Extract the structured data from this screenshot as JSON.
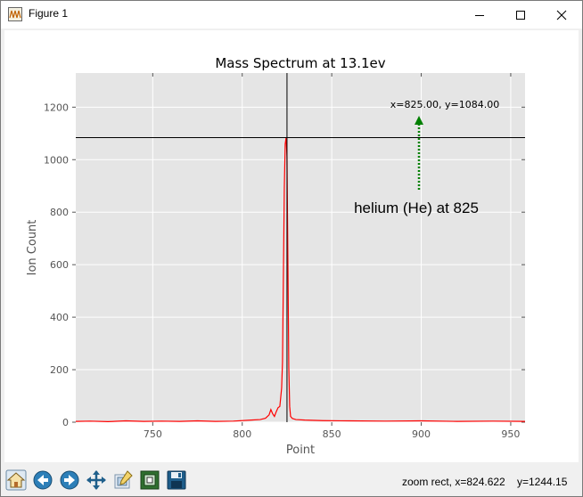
{
  "window": {
    "title": "Figure 1"
  },
  "chart_data": {
    "type": "line",
    "title": "Mass Spectrum at 13.1ev",
    "xlabel": "Point",
    "ylabel": "Ion Count",
    "xlim": [
      707,
      958
    ],
    "ylim": [
      0,
      1330
    ],
    "xticks": [
      750,
      800,
      850,
      900,
      950
    ],
    "yticks": [
      0,
      200,
      400,
      600,
      800,
      1000,
      1200
    ],
    "grid": true,
    "series": [
      {
        "color": "#ff0000",
        "x": [
          707,
          715,
          725,
          735,
          745,
          755,
          765,
          775,
          785,
          795,
          805,
          810,
          813,
          815,
          816,
          817,
          818,
          819,
          820,
          821,
          822,
          822.5,
          823,
          823.5,
          824,
          824.5,
          825,
          825.5,
          826,
          826.5,
          827,
          828,
          830,
          835,
          845,
          860,
          880,
          900,
          920,
          940,
          958
        ],
        "y": [
          3,
          4,
          2,
          5,
          3,
          4,
          3,
          5,
          3,
          4,
          8,
          10,
          15,
          28,
          48,
          32,
          22,
          40,
          55,
          60,
          130,
          230,
          560,
          890,
          1060,
          1084,
          1010,
          620,
          210,
          60,
          22,
          14,
          10,
          8,
          6,
          5,
          4,
          5,
          3,
          4,
          3
        ]
      }
    ],
    "crosshair": {
      "x": 825,
      "y": 1084
    },
    "annotation": {
      "coords_label": "x=825.00, y=1084.00",
      "text": "helium (He) at 825",
      "arrow_color": "#008000"
    }
  },
  "toolbar": {
    "buttons": [
      "home-icon",
      "back-icon",
      "forward-icon",
      "pan-icon",
      "configure-subplots-icon",
      "zoom-to-rect-icon",
      "save-icon"
    ]
  },
  "status": {
    "mode": "zoom rect, x=824.622",
    "y_readout": "y=1244.15"
  }
}
